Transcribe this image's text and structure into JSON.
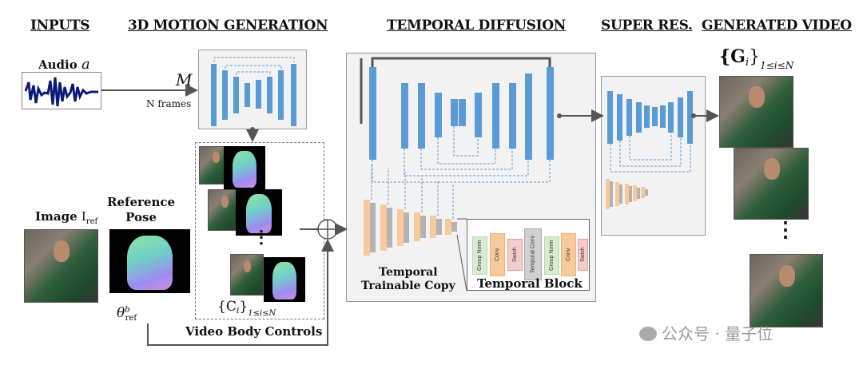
{
  "headers": {
    "inputs": "INPUTS",
    "motion": "3D MOTION GENERATION",
    "temporal": "TEMPORAL DIFFUSION",
    "superres": "SUPER RES.",
    "generated": "GENERATED VIDEO"
  },
  "audio": {
    "label": "Audio",
    "symbol": "a"
  },
  "motion": {
    "symbol": "M",
    "frames": "N frames"
  },
  "image_ref": {
    "label": "Image",
    "sub": "I",
    "subscript": "ref"
  },
  "reference_pose": {
    "label_line1": "Reference",
    "label_line2": "Pose",
    "theta": "θ",
    "theta_sup": "b",
    "theta_sub": "ref"
  },
  "video_body_controls": {
    "label": "Video Body Controls",
    "set": "{C",
    "set_sub": "i",
    "set_close": "}",
    "range": "1≤i≤N"
  },
  "temporal_trainable_copy": {
    "line1": "Temporal",
    "line2": "Trainable Copy"
  },
  "temporal_block": {
    "title": "Temporal Block",
    "layers": [
      "Group Norm",
      "Conv",
      "Swish",
      "Temporal Conv",
      "Group Norm",
      "Conv",
      "Swish"
    ]
  },
  "generated": {
    "set": "{G",
    "set_sub": "i",
    "set_close": "}",
    "range": "1≤i≤N"
  },
  "watermark": "公众号 · 量子位",
  "colors": {
    "blue": "#5b9bd5",
    "orange": "#f8c99a",
    "gray": "#b3b3b3",
    "green": "#d9ead3",
    "pink": "#f4cccc"
  }
}
